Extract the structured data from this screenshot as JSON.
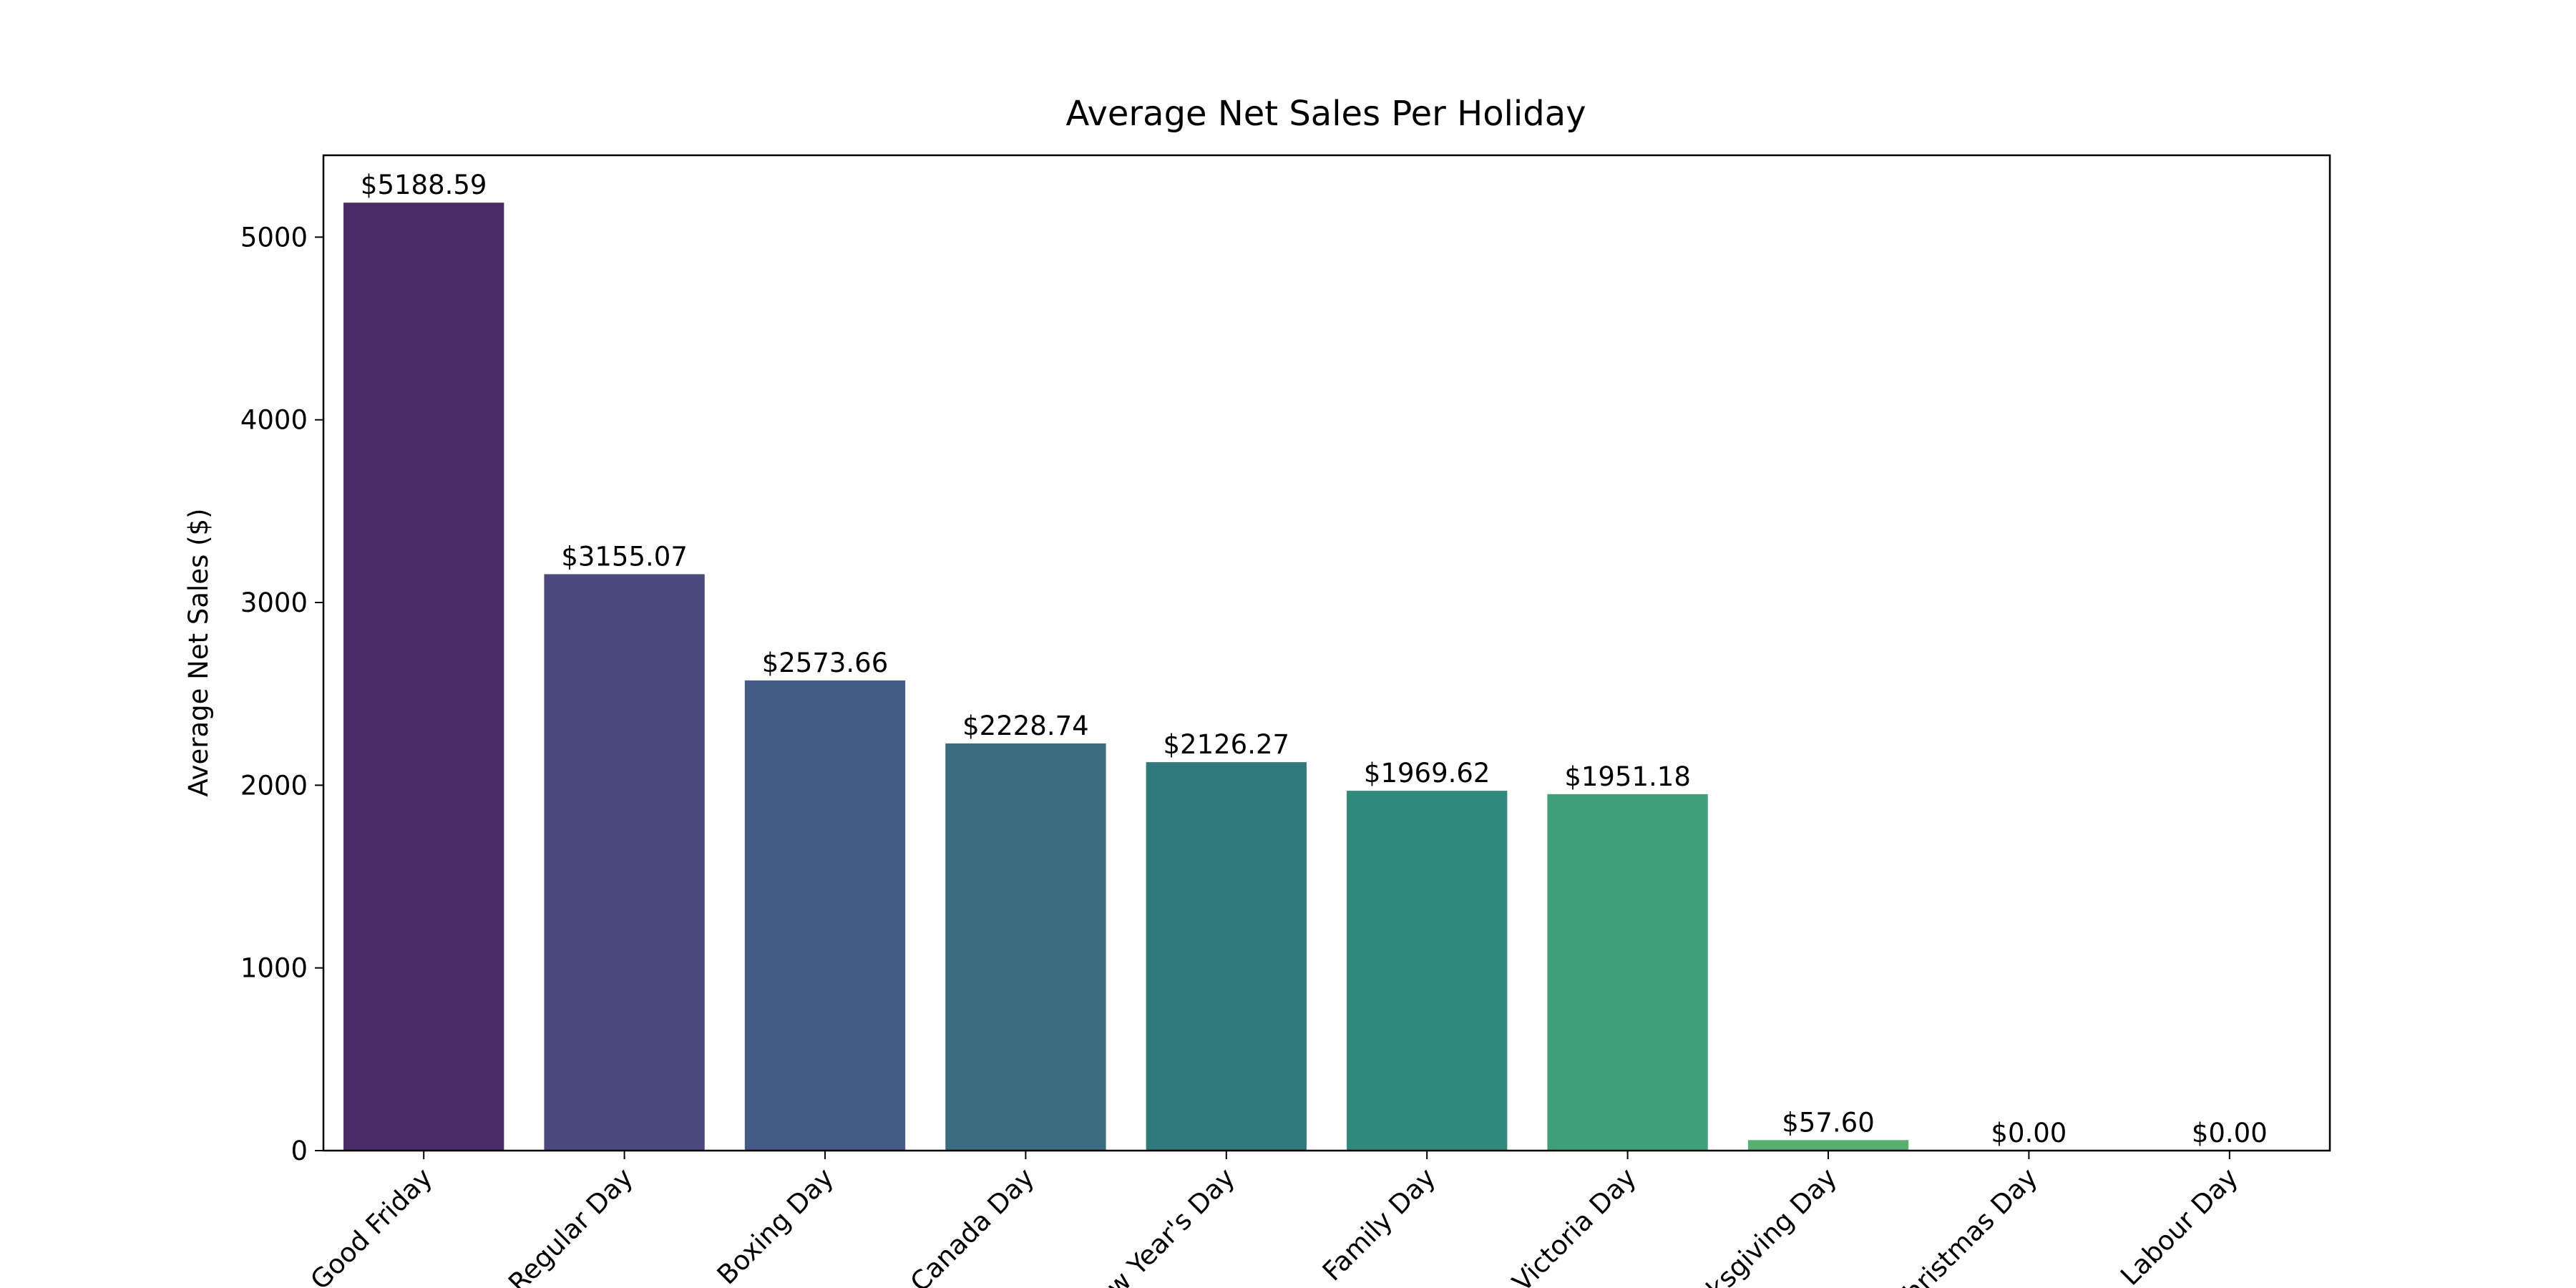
{
  "chart_data": {
    "type": "bar",
    "title": "Average Net Sales Per Holiday",
    "y_label": "Average Net Sales ($)",
    "categories": [
      "Good Friday",
      "Regular Day",
      "Boxing Day",
      "Canada Day",
      "New Year's Day",
      "Family Day",
      "Victoria Day",
      "Thanksgiving Day",
      "Christmas Day",
      "Labour Day"
    ],
    "values": [
      5188.59,
      3155.07,
      2573.66,
      2228.74,
      2126.27,
      1969.62,
      1951.18,
      57.6,
      0,
      0
    ],
    "value_labels": [
      "$5188.59",
      "$3155.07",
      "$2573.66",
      "$2228.74",
      "$2126.27",
      "$1969.62",
      "$1951.18",
      "$57.60",
      "$0.00",
      "$0.00"
    ],
    "colors": [
      "#4a2b66",
      "#4a4a7e",
      "#435b85",
      "#3b6d80",
      "#307a7e",
      "#2f8a7c",
      "#3da07a",
      "#55b072",
      "#7dc46c",
      "#a5d36a"
    ],
    "ylim": [
      0,
      5448
    ],
    "yticks": [
      0,
      1000,
      2000,
      3000,
      4000,
      5000
    ]
  }
}
